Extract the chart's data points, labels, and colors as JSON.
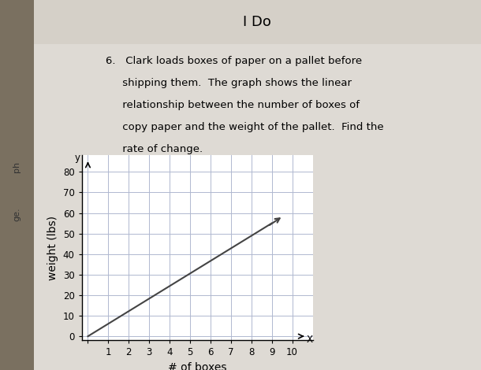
{
  "title": "I Do",
  "problem_text_line1": "6.   Clark loads boxes of paper on a pallet before",
  "problem_text_line2": "     shipping them.  The graph shows the linear",
  "problem_text_line3": "     relationship between the number of boxes of",
  "problem_text_line4": "     copy paper and the weight of the pallet.  Find the",
  "problem_text_line5": "     rate of change.",
  "xlabel": "# of boxes",
  "ylabel": "weight (lbs)",
  "x_data": [
    0,
    9
  ],
  "y_data": [
    0,
    55
  ],
  "xlim": [
    -0.3,
    11.0
  ],
  "ylim": [
    -2,
    88
  ],
  "xticks": [
    1,
    2,
    3,
    4,
    5,
    6,
    7,
    8,
    9,
    10
  ],
  "yticks": [
    10,
    20,
    30,
    40,
    50,
    60,
    70,
    80
  ],
  "line_color": "#444444",
  "grid_color": "#b0b8d0",
  "outer_bg": "#c8c0b0",
  "left_strip_color": "#7a7060",
  "page_bg": "#dedad4",
  "title_fontsize": 13,
  "axis_label_fontsize": 10,
  "tick_fontsize": 8.5,
  "text_fontsize": 9.5
}
